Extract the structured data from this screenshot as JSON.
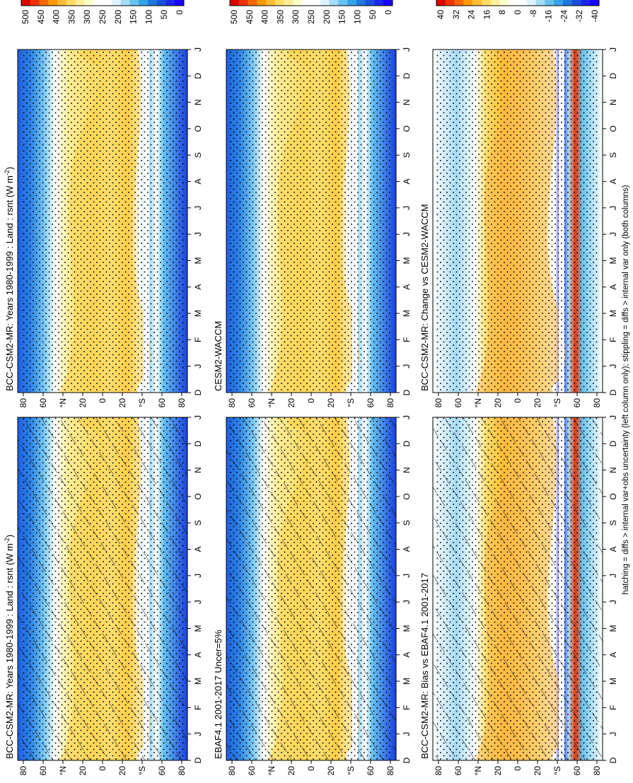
{
  "footnote": "hatching = diffs > internal var+obs uncertainty (left column only); stippling = diffs > internal var only (both columns)",
  "colorbars": {
    "absolute": {
      "labels": [
        "500",
        "450",
        "400",
        "350",
        "300",
        "250",
        "200",
        "150",
        "100",
        "50",
        "0"
      ],
      "colors": [
        "#dd0000",
        "#ee3300",
        "#ff6600",
        "#ff9900",
        "#ffbb33",
        "#ffdd66",
        "#ffee99",
        "#ffffcc",
        "#ffffff",
        "#ffffff",
        "#ddf2ff",
        "#a8dcf6",
        "#66c2ee",
        "#33a3e8",
        "#1e78e0",
        "#1a50dd",
        "#1a28e8",
        "#1a00ff"
      ]
    },
    "difference": {
      "labels": [
        "40",
        "32",
        "24",
        "16",
        "8",
        "0",
        "-8",
        "-16",
        "-24",
        "-32",
        "-40"
      ],
      "colors": [
        "#dd0000",
        "#ee3300",
        "#ff6600",
        "#ff9900",
        "#ffbb33",
        "#ffdd66",
        "#ffee99",
        "#ffffcc",
        "#ffffff",
        "#ffffff",
        "#ddf2ff",
        "#a8dcf6",
        "#66c2ee",
        "#33a3e8",
        "#1e78e0",
        "#1a50dd",
        "#1a28e8",
        "#1a00ff"
      ]
    }
  },
  "chart_data": [
    {
      "type": "heatmap",
      "title": "BCC-CSM2-MR: Years 1980-1999 : Land : rsnt (W m",
      "title_sup": "-2",
      "title_close": ")",
      "x_tick_labels": [
        "D",
        "J",
        "F",
        "M",
        "A",
        "M",
        "J",
        "J",
        "A",
        "S",
        "O",
        "N",
        "D",
        "J"
      ],
      "y_tick_labels": [
        "80",
        "60",
        "°N",
        "20",
        "0",
        "20",
        "°S",
        "60",
        "80"
      ],
      "zlim": [
        0,
        500
      ],
      "colorbar": "absolute",
      "hatching": true,
      "stippling": true
    },
    {
      "type": "heatmap",
      "title": "BCC-CSM2-MR: Years 1980-1999 : Land : rsnt (W m",
      "title_sup": "-2",
      "title_close": ")",
      "x_tick_labels": [
        "D",
        "J",
        "F",
        "M",
        "A",
        "M",
        "J",
        "J",
        "A",
        "S",
        "O",
        "N",
        "D",
        "J"
      ],
      "y_tick_labels": [
        "80",
        "60",
        "°N",
        "20",
        "0",
        "20",
        "°S",
        "60",
        "80"
      ],
      "zlim": [
        0,
        500
      ],
      "colorbar": "absolute",
      "hatching": false,
      "stippling": true
    },
    {
      "type": "heatmap",
      "title": "EBAF4.1 2001-2017 Uncer=5%",
      "x_tick_labels": [
        "D",
        "J",
        "F",
        "M",
        "A",
        "M",
        "J",
        "J",
        "A",
        "S",
        "O",
        "N",
        "D",
        "J"
      ],
      "y_tick_labels": [
        "80",
        "60",
        "°N",
        "20",
        "0",
        "20",
        "°S",
        "60",
        "80"
      ],
      "zlim": [
        0,
        500
      ],
      "colorbar": "absolute",
      "hatching": true,
      "stippling": true
    },
    {
      "type": "heatmap",
      "title": "CESM2-WACCM",
      "x_tick_labels": [
        "D",
        "J",
        "F",
        "M",
        "A",
        "M",
        "J",
        "J",
        "A",
        "S",
        "O",
        "N",
        "D",
        "J"
      ],
      "y_tick_labels": [
        "80",
        "60",
        "°N",
        "20",
        "0",
        "20",
        "°S",
        "60",
        "80"
      ],
      "zlim": [
        0,
        500
      ],
      "colorbar": "absolute",
      "hatching": false,
      "stippling": true
    },
    {
      "type": "heatmap",
      "title": "BCC-CSM2-MR: Bias vs EBAF4.1 2001-2017",
      "x_tick_labels": [
        "D",
        "J",
        "F",
        "M",
        "A",
        "M",
        "J",
        "J",
        "A",
        "S",
        "O",
        "N",
        "D",
        "J"
      ],
      "y_tick_labels": [
        "80",
        "60",
        "°N",
        "20",
        "0",
        "20",
        "°S",
        "60",
        "80"
      ],
      "zlim": [
        -40,
        40
      ],
      "colorbar": "difference",
      "hatching": true,
      "stippling": true
    },
    {
      "type": "heatmap",
      "title": "BCC-CSM2-MR: Change vs CESM2-WACCM",
      "x_tick_labels": [
        "D",
        "J",
        "F",
        "M",
        "A",
        "M",
        "J",
        "J",
        "A",
        "S",
        "O",
        "N",
        "D",
        "J"
      ],
      "y_tick_labels": [
        "80",
        "60",
        "°N",
        "20",
        "0",
        "20",
        "°S",
        "60",
        "80"
      ],
      "zlim": [
        -40,
        40
      ],
      "colorbar": "difference",
      "hatching": false,
      "stippling": true
    }
  ]
}
